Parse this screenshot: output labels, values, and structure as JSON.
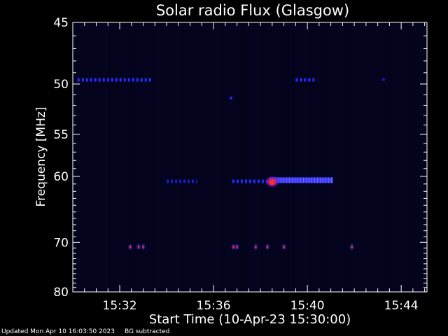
{
  "footer": {
    "updated": "Updated Mon Apr 10 16:03:50 2023",
    "note": "BG subtracted"
  },
  "chart_data": {
    "type": "heatmap",
    "title": "Solar radio Flux (Glasgow)",
    "xlabel": "Start Time (10-Apr-23 15:30:00)",
    "ylabel": "Frequency [MHz]",
    "x_unit": "minutes after 15:30:00",
    "xlim": [
      0,
      15.1
    ],
    "ylim": [
      80,
      45
    ],
    "y_scale": "reciprocal",
    "x_ticks": [
      {
        "value": 2,
        "label": "15:32"
      },
      {
        "value": 6,
        "label": "15:36"
      },
      {
        "value": 10,
        "label": "15:40"
      },
      {
        "value": 14,
        "label": "15:44"
      }
    ],
    "y_ticks": [
      {
        "value": 45,
        "label": "45"
      },
      {
        "value": 50,
        "label": "50"
      },
      {
        "value": 55,
        "label": "55"
      },
      {
        "value": 60,
        "label": "60"
      },
      {
        "value": 70,
        "label": "70"
      },
      {
        "value": 80,
        "label": "80"
      }
    ],
    "colors": {
      "background": "#03031c",
      "low": "#1a1aff",
      "high": "#ff2a2a"
    },
    "emission_bands": [
      {
        "freq": 49.6,
        "t_start": 0.2,
        "t_end": 3.4,
        "intensity": "medium",
        "pattern": "dashed"
      },
      {
        "freq": 49.6,
        "t_start": 9.5,
        "t_end": 10.4,
        "intensity": "medium",
        "pattern": "dashed"
      },
      {
        "freq": 49.6,
        "t_start": 13.2,
        "t_end": 13.3,
        "intensity": "low",
        "pattern": "solid"
      },
      {
        "freq": 51.3,
        "t_start": 6.7,
        "t_end": 6.8,
        "intensity": "medium",
        "pattern": "solid"
      },
      {
        "freq": 60.6,
        "t_start": 4.0,
        "t_end": 5.3,
        "intensity": "low",
        "pattern": "dashed"
      },
      {
        "freq": 60.6,
        "t_start": 6.8,
        "t_end": 8.3,
        "intensity": "medium",
        "pattern": "dashed"
      },
      {
        "freq": 60.5,
        "t_start": 8.4,
        "t_end": 11.1,
        "intensity": "high",
        "pattern": "solid"
      },
      {
        "freq": 60.7,
        "t_start": 8.3,
        "t_end": 8.7,
        "intensity": "peak",
        "pattern": "blob"
      }
    ],
    "point_sources": [
      {
        "t": 2.45,
        "freq": 70.8
      },
      {
        "t": 2.8,
        "freq": 70.8
      },
      {
        "t": 3.0,
        "freq": 70.8
      },
      {
        "t": 6.85,
        "freq": 70.8
      },
      {
        "t": 7.0,
        "freq": 70.8
      },
      {
        "t": 7.8,
        "freq": 70.8
      },
      {
        "t": 8.3,
        "freq": 70.8
      },
      {
        "t": 9.0,
        "freq": 70.8
      },
      {
        "t": 11.9,
        "freq": 70.8
      }
    ]
  }
}
